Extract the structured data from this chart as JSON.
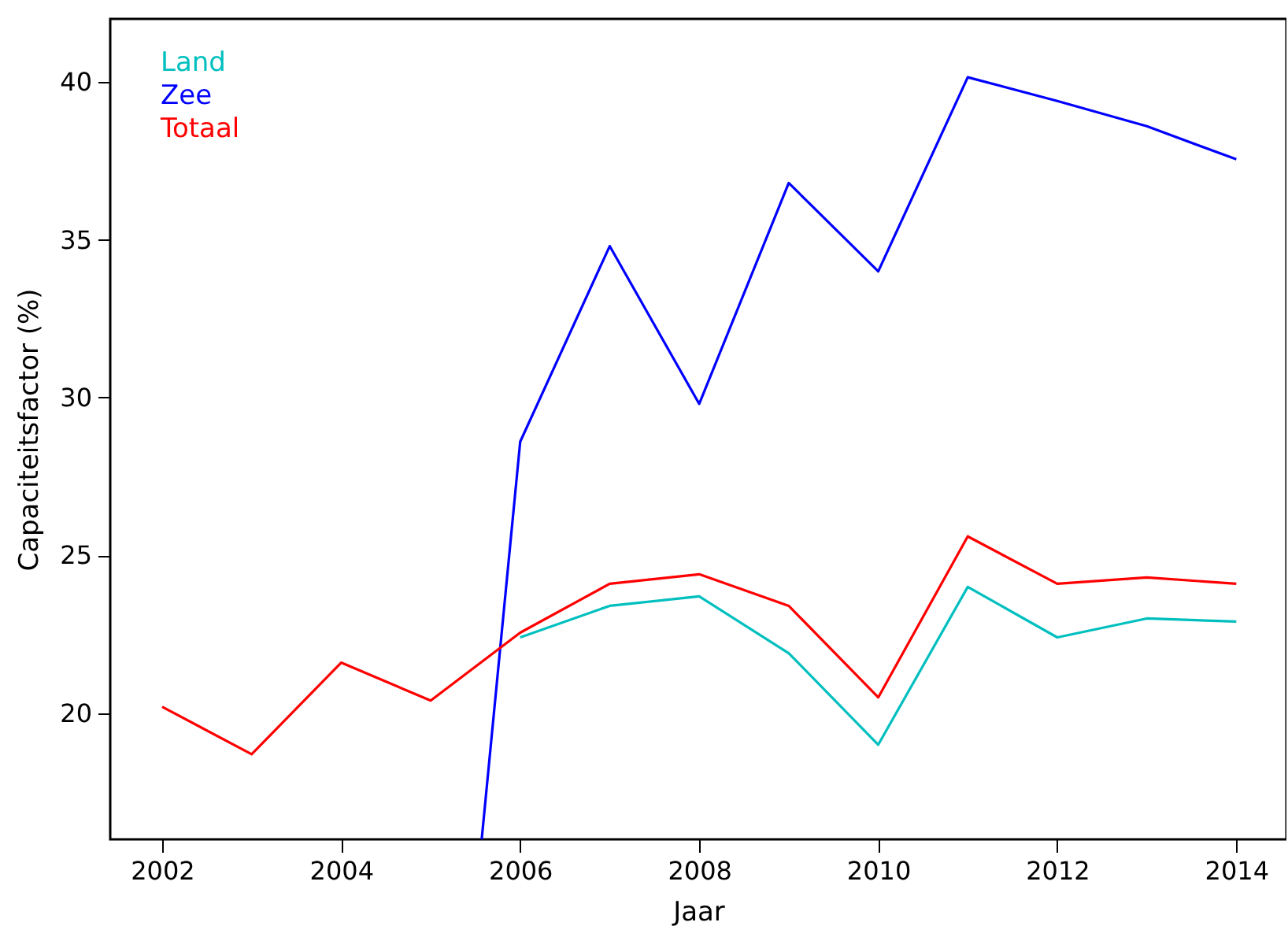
{
  "chart_data": {
    "type": "line",
    "xlabel": "Jaar",
    "ylabel": "Capaciteitsfactor (%)",
    "x": [
      2002,
      2003,
      2004,
      2005,
      2006,
      2007,
      2008,
      2009,
      2010,
      2011,
      2012,
      2013,
      2014
    ],
    "series": [
      {
        "name": "Land",
        "color": "#00bfbf",
        "values": [
          null,
          null,
          null,
          null,
          22.4,
          23.4,
          23.7,
          21.9,
          19.0,
          24.0,
          22.4,
          23.0,
          22.9
        ]
      },
      {
        "name": "Zee",
        "color": "#0000ff",
        "x": [
          2005.57,
          2006,
          2007,
          2008,
          2009,
          2010,
          2011,
          2012,
          2013,
          2014
        ],
        "values": [
          16,
          28.6,
          34.8,
          29.8,
          36.8,
          34.0,
          40.15,
          39.4,
          38.6,
          37.55
        ]
      },
      {
        "name": "Totaal",
        "color": "#ff0000",
        "values": [
          20.2,
          18.7,
          21.6,
          20.4,
          22.55,
          24.1,
          24.4,
          23.4,
          20.5,
          25.6,
          24.1,
          24.3,
          24.1
        ]
      }
    ],
    "xlim": [
      2001.42,
      2014.56
    ],
    "ylim": [
      16,
      42
    ],
    "xticks": [
      2002,
      2004,
      2006,
      2008,
      2010,
      2012,
      2014
    ],
    "yticks": [
      20,
      25,
      30,
      35,
      40
    ],
    "grid": false,
    "legend": "top left",
    "marker": "none",
    "line_style": "solid"
  }
}
